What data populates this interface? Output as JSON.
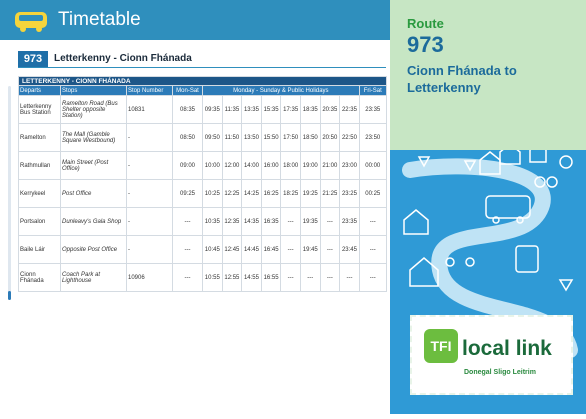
{
  "header": {
    "title": "Timetable"
  },
  "route_bar": {
    "number": "973",
    "name": "Letterkenny - Cionn Fhánada"
  },
  "table": {
    "title": "LETTERKENNY - CIONN FHÁNADA",
    "columns": [
      "Departs",
      "Stops",
      "Stop Number",
      "Mon-Sat",
      "Monday - Sunday & Public Holidays",
      "Fri-Sat"
    ],
    "rows": [
      [
        "Letterkenny Bus Station",
        "Ramelton Road (Bus Shelter opposite Station)",
        "10831",
        "08:35",
        "09:35",
        "11:35",
        "13:35",
        "15:35",
        "17:35",
        "18:35",
        "20:35",
        "22:35",
        "23:35"
      ],
      [
        "Ramelton",
        "The Mall (Gamble Square Westbound)",
        "-",
        "08:50",
        "09:50",
        "11:50",
        "13:50",
        "15:50",
        "17:50",
        "18:50",
        "20:50",
        "22:50",
        "23:50"
      ],
      [
        "Rathmullan",
        "Main Street (Post Office)",
        "-",
        "09:00",
        "10:00",
        "12:00",
        "14:00",
        "16:00",
        "18:00",
        "19:00",
        "21:00",
        "23:00",
        "00:00"
      ],
      [
        "Kerrykeel",
        "Post Office",
        "-",
        "09:25",
        "10:25",
        "12:25",
        "14:25",
        "16:25",
        "18:25",
        "19:25",
        "21:25",
        "23:25",
        "00:25"
      ],
      [
        "Portsalon",
        "Dunleavy's Gala Shop",
        "-",
        "---",
        "10:35",
        "12:35",
        "14:35",
        "16:35",
        "---",
        "19:35",
        "---",
        "23:35",
        "---"
      ],
      [
        "Baile Láir",
        "Opposite Post Office",
        "-",
        "---",
        "10:45",
        "12:45",
        "14:45",
        "16:45",
        "---",
        "19:45",
        "---",
        "23:45",
        "---"
      ],
      [
        "Cionn Fhánada",
        "Coach Park at Lighthouse",
        "10906",
        "---",
        "10:55",
        "12:55",
        "14:55",
        "16:55",
        "---",
        "---",
        "---",
        "---",
        "---"
      ]
    ]
  },
  "side": {
    "label": "Route",
    "number": "973",
    "direction": "Cionn Fhánada to Letterkenny"
  },
  "logo": {
    "tfi": "TFI",
    "brand": "local link",
    "regions": "Donegal Sligo Leitrim"
  }
}
